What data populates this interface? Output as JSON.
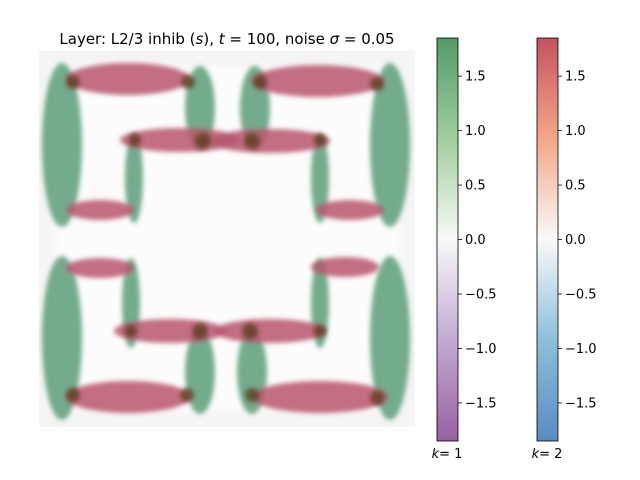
{
  "chart_data": {
    "type": "heatmap",
    "title": "Layer: L2/3 inhib (s), t = 100, noise σ = 0.05",
    "title_parts": {
      "prefix": "Layer: L2/3 inhib (",
      "s": "s",
      "mid1": "), ",
      "t": "t",
      "mid2": " = 100, noise ",
      "sigma": "σ",
      "mid3": " = 0.05"
    },
    "grid": false,
    "axes_visible": false,
    "overlays": [
      {
        "name_label_k": "k",
        "name_label_val": "= 1",
        "colormap": "PRGn",
        "dominant_color": "#2e8b57"
      },
      {
        "name_label_k": "k",
        "name_label_val": "= 2",
        "colormap": "RdBu_r",
        "dominant_color": "#b2182b"
      }
    ],
    "colorbars": [
      {
        "label_k": "k",
        "label_val": "= 1",
        "range": [
          -1.85,
          1.85
        ],
        "ticks": [
          1.5,
          1.0,
          0.5,
          0.0,
          -0.5,
          -1.0,
          -1.5
        ],
        "tick_labels": [
          "1.5",
          "1.0",
          "0.5",
          "0.0",
          "−0.5",
          "−1.0",
          "−1.5"
        ],
        "colors": {
          "top": "#1b7837",
          "upper": "#7fbf7b",
          "mid": "#f7f7f7",
          "lower": "#af8dc3",
          "bottom": "#762a83"
        }
      },
      {
        "label_k": "k",
        "label_val": "= 2",
        "range": [
          -1.85,
          1.85
        ],
        "ticks": [
          1.5,
          1.0,
          0.5,
          0.0,
          -0.5,
          -1.0,
          -1.5
        ],
        "tick_labels": [
          "1.5",
          "1.0",
          "0.5",
          "0.0",
          "−0.5",
          "−1.0",
          "−1.5"
        ],
        "colors": {
          "top": "#b2182b",
          "upper": "#ef8a62",
          "mid": "#f7f7f7",
          "lower": "#67a9cf",
          "bottom": "#2166ac"
        }
      }
    ]
  }
}
